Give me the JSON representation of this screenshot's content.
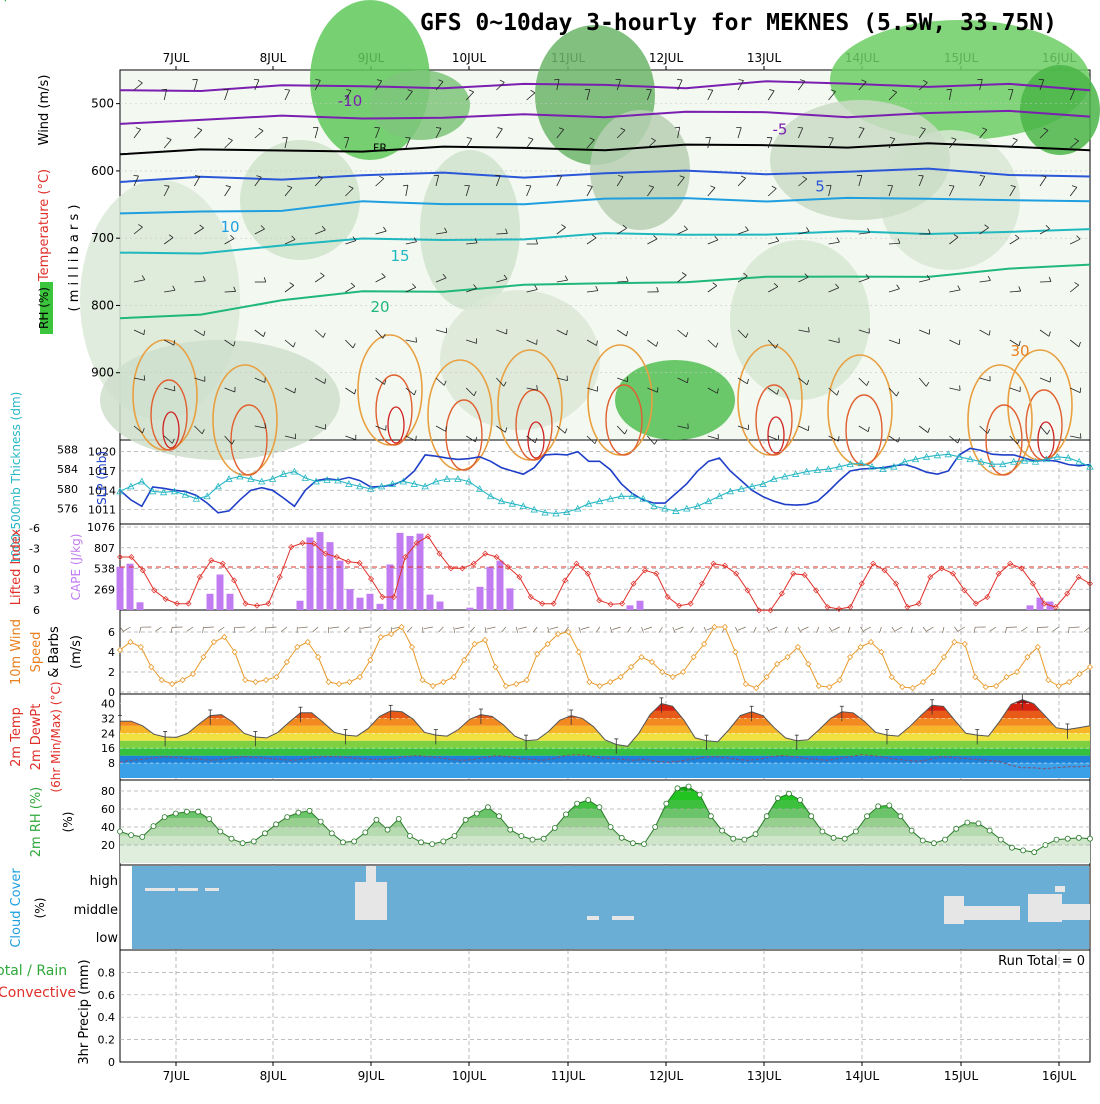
{
  "title": "GFS 0~10day 3-hourly for MEKNES (5.5W, 33.75N)",
  "date_labels": [
    "7JUL",
    "8JUL",
    "9JUL",
    "10JUL",
    "11JUL",
    "12JUL",
    "13JUL",
    "14JUL",
    "15JUL",
    "16JUL"
  ],
  "colors": {
    "grid": "#aaaaaa",
    "slp": "#1f3fc8",
    "thickness": "#27b7c4",
    "cape": "#c07cf0",
    "li": "#e0302a",
    "wind": "#e89a2a",
    "rh": "#2fa83a",
    "cloud": "#6aaed6",
    "cloud_fill": "#e6e6e6"
  },
  "chart_data": [
    {
      "type": "heatmap",
      "panel": "upper_air",
      "ylabel_parts": [
        "RH (%)",
        "Temperature (°C)",
        "Wind (m/s)"
      ],
      "ylabel_center": "( m i l l i b a r s )",
      "y_ticks": [
        500,
        600,
        700,
        800,
        900
      ],
      "ylim": [
        1000,
        450
      ],
      "isotherms": [
        {
          "label": "-10",
          "color": "#7a1fb0",
          "y": [
            480,
            478,
            476,
            474,
            474,
            474,
            472,
            474,
            470,
            470,
            472,
            474,
            480
          ]
        },
        {
          "label": "-5",
          "color": "#7a1fb0",
          "y": [
            527,
            524,
            521,
            519,
            521,
            519,
            517,
            512,
            516,
            517,
            514,
            514,
            516
          ]
        },
        {
          "label": "FR",
          "color": "#000000",
          "y": [
            572,
            571,
            570,
            568,
            567,
            566,
            566,
            564,
            562,
            562,
            562,
            564,
            566
          ]
        },
        {
          "label": "5",
          "color": "#2a57d8",
          "y": [
            616,
            612,
            610,
            606,
            606,
            607,
            603,
            603,
            602,
            601,
            600,
            603,
            608
          ]
        },
        {
          "label": "10",
          "color": "#1f9fe0",
          "y": [
            666,
            661,
            656,
            648,
            650,
            646,
            644,
            641,
            642,
            643,
            642,
            640,
            648
          ]
        },
        {
          "label": "15",
          "color": "#1fb8bf",
          "y": [
            725,
            720,
            710,
            704,
            700,
            701,
            696,
            692,
            694,
            693,
            691,
            690,
            690
          ]
        },
        {
          "label": "20",
          "color": "#1fb87a",
          "y": [
            820,
            810,
            795,
            780,
            776,
            772,
            768,
            762,
            760,
            758,
            754,
            748,
            740
          ]
        },
        {
          "label": "30",
          "color": "#e8801f",
          "y": [
            null
          ]
        }
      ],
      "rh_levels": [
        30,
        50
      ]
    },
    {
      "type": "line",
      "panel": "slp_thickness",
      "ylabel_left": "1000-500mb Thickness (dm)",
      "ylabel_right": "SLP (mb)",
      "left_ticks": [
        576,
        580,
        584,
        588
      ],
      "right_ticks": [
        1011,
        1014,
        1017,
        1020
      ],
      "series": [
        {
          "name": "SLP (mb)",
          "values": [
            1014.0,
            1012.5,
            1011.5,
            1014.5,
            1014.3,
            1014.0,
            1013.8,
            1013.2,
            1012.0,
            1010.5,
            1010.8,
            1012.5,
            1014.0,
            1014.4,
            1014.0,
            1012.8,
            1011.5,
            1014.0,
            1015.5,
            1015.8,
            1015.6,
            1016.0,
            1015.5,
            1014.5,
            1014.6,
            1014.8,
            1015.5,
            1017.0,
            1019.5,
            1019.3,
            1019.0,
            1018.8,
            1018.9,
            1019.2,
            1018.5,
            1017.5,
            1017.0,
            1016.5,
            1017.5,
            1019.5,
            1019.6,
            1019.5,
            1020.0,
            1018.5,
            1018.5,
            1017.2,
            1015.0,
            1013.5,
            1012.5,
            1012.0,
            1012.0,
            1013.5,
            1015.0,
            1017.0,
            1018.5,
            1019.0,
            1017.0,
            1015.5,
            1014.0,
            1013.0,
            1012.3,
            1011.8,
            1011.7,
            1011.8,
            1012.3,
            1013.8,
            1015.5,
            1017.0,
            1017.3,
            1017.4,
            1017.5,
            1017.8,
            1018.0,
            1017.5,
            1016.8,
            1016.5,
            1017.0,
            1019.5,
            1020.5,
            1020.2,
            1019.6,
            1019.5,
            1019.5,
            1019.0,
            1018.5,
            1018.7,
            1018.5,
            1018.0,
            1017.8,
            1018.0
          ]
        },
        {
          "name": "1000-500mb Thickness (dm)",
          "values": [
            579.5,
            580.5,
            581.5,
            579.5,
            579.3,
            579.5,
            578.8,
            578.0,
            578.5,
            580.5,
            582.0,
            582.5,
            582.0,
            581.5,
            582.0,
            583.0,
            583.5,
            582.2,
            581.5,
            581.8,
            581.7,
            581.0,
            580.5,
            580.0,
            580.5,
            581.0,
            581.5,
            581.0,
            580.5,
            581.5,
            582.0,
            582.0,
            581.5,
            580.0,
            578.5,
            577.5,
            577.0,
            576.5,
            575.8,
            575.2,
            575.0,
            575.3,
            576.0,
            577.0,
            577.5,
            578.0,
            578.5,
            578.5,
            578.0,
            576.5,
            576.0,
            575.5,
            576.0,
            576.5,
            577.5,
            578.5,
            579.5,
            580.0,
            580.5,
            581.0,
            582.0,
            582.5,
            583.0,
            583.5,
            583.8,
            584.0,
            584.5,
            585.0,
            585.2,
            584.5,
            584.0,
            584.5,
            585.5,
            586.0,
            586.5,
            586.8,
            587.0,
            586.5,
            586.0,
            585.5,
            585.0,
            585.0,
            585.5,
            585.7,
            585.5,
            586.0,
            586.5,
            586.3,
            585.5,
            584.5
          ]
        }
      ]
    },
    {
      "type": "bar",
      "panel": "cape_li",
      "ylabel_left": "Lifted Index",
      "ylabel_right": "CAPE (J/kg)",
      "li_ticks": [
        "6",
        "3",
        "0",
        "-3",
        "-6"
      ],
      "cape_ticks": [
        269,
        538,
        807,
        1076
      ],
      "cape_values": [
        560,
        600,
        100,
        0,
        0,
        0,
        0,
        0,
        0,
        210,
        460,
        210,
        0,
        0,
        0,
        0,
        0,
        0,
        120,
        940,
        1010,
        880,
        640,
        270,
        160,
        210,
        80,
        590,
        1000,
        960,
        990,
        200,
        110,
        0,
        0,
        30,
        300,
        560,
        640,
        280,
        0,
        0,
        0,
        0,
        0,
        0,
        0,
        0,
        0,
        0,
        0,
        60,
        120,
        0,
        0,
        0,
        0,
        0,
        0,
        0,
        0,
        0,
        0,
        0,
        0,
        0,
        0,
        0,
        0,
        0,
        0,
        0,
        0,
        0,
        0,
        0,
        0,
        0,
        0,
        0,
        0,
        0,
        0,
        0,
        0,
        0,
        0,
        0,
        0,
        0,
        0,
        60,
        160,
        110,
        0,
        0,
        0,
        0
      ],
      "li_values": [
        -1.5,
        -1.5,
        0.5,
        3.5,
        4.8,
        5.5,
        5.5,
        1.5,
        -1.0,
        -0.5,
        2.0,
        5.5,
        5.8,
        5.5,
        1.5,
        -3.0,
        -3.6,
        -3.5,
        -2.0,
        -1.5,
        -0.8,
        -0.6,
        1.8,
        4.5,
        4.5,
        -1.5,
        -3.6,
        -4.6,
        -2.0,
        0.2,
        0.2,
        -0.5,
        -2.0,
        -1.5,
        0.0,
        1.5,
        4.5,
        5.5,
        5.5,
        2.0,
        -0.5,
        1.0,
        5.0,
        5.6,
        5.5,
        2.5,
        0.5,
        1.0,
        4.5,
        5.8,
        5.5,
        2.5,
        -0.5,
        -0.2,
        1.0,
        3.5,
        6.5,
        6.5,
        4.0,
        1.0,
        1.2,
        3.5,
        6.0,
        6.3,
        6.0,
        2.5,
        -0.5,
        0.5,
        2.5,
        6.0,
        5.5,
        1.5,
        0.2,
        1.0,
        3.5,
        5.5,
        4.5,
        1.0,
        -0.5,
        0.2,
        2.5,
        5.5,
        6.0,
        4.0,
        1.5,
        2.5
      ]
    },
    {
      "type": "line",
      "panel": "wind10m",
      "ylabel": "10m Wind Speed & Barbs (m/s)",
      "ylabel_parts": [
        "10m Wind",
        "Speed",
        "& Barbs",
        "(m/s)"
      ],
      "ticks": [
        0,
        2,
        4,
        6
      ],
      "ylim": [
        0,
        8
      ],
      "values": [
        4.2,
        5.0,
        4.5,
        2.5,
        1.2,
        0.8,
        1.2,
        1.8,
        3.5,
        5.0,
        5.5,
        4.0,
        1.2,
        1.0,
        1.2,
        1.5,
        3.0,
        4.5,
        5.0,
        3.5,
        1.0,
        0.8,
        1.0,
        1.5,
        3.2,
        5.5,
        5.8,
        6.5,
        4.5,
        1.2,
        0.6,
        1.0,
        1.5,
        3.2,
        4.8,
        5.2,
        2.5,
        0.6,
        0.8,
        1.2,
        3.8,
        4.8,
        5.8,
        6.0,
        4.0,
        1.0,
        0.6,
        1.0,
        1.5,
        2.5,
        3.5,
        3.0,
        2.0,
        1.5,
        2.0,
        3.5,
        4.8,
        6.5,
        6.5,
        4.0,
        0.8,
        0.4,
        1.5,
        2.8,
        3.5,
        4.5,
        2.8,
        0.6,
        0.5,
        1.2,
        3.5,
        4.5,
        5.0,
        4.0,
        1.5,
        0.5,
        0.4,
        1.0,
        2.0,
        3.5,
        5.0,
        4.8,
        1.5,
        0.5,
        0.6,
        1.5,
        2.0,
        3.5,
        4.5,
        1.2,
        0.6,
        1.0,
        1.8,
        2.5
      ]
    },
    {
      "type": "area",
      "panel": "temp2m",
      "ylabel_parts": [
        "2m Temp",
        "2m DewPt",
        "(6hr Min/Max) (°C)"
      ],
      "ticks": [
        8,
        16,
        24,
        32,
        40
      ],
      "ylim": [
        0,
        44
      ],
      "temp": [
        30.5,
        30.5,
        28.0,
        23.5,
        22.0,
        21.8,
        24.0,
        29.0,
        33.5,
        34.0,
        30.0,
        24.0,
        22.0,
        21.5,
        24.5,
        30.0,
        35.0,
        35.0,
        30.0,
        24.5,
        23.0,
        22.5,
        26.5,
        33.0,
        36.0,
        35.5,
        31.5,
        24.5,
        23.0,
        22.5,
        26.0,
        31.5,
        34.0,
        33.0,
        28.5,
        22.5,
        20.0,
        20.5,
        25.0,
        31.0,
        33.5,
        32.0,
        27.5,
        20.5,
        18.0,
        17.0,
        24.0,
        34.0,
        40.0,
        38.5,
        31.0,
        21.5,
        20.0,
        19.5,
        26.0,
        33.5,
        35.5,
        33.5,
        27.0,
        21.5,
        20.0,
        20.5,
        26.0,
        32.0,
        35.5,
        35.0,
        30.5,
        24.5,
        23.0,
        22.5,
        27.5,
        33.5,
        39.0,
        38.5,
        31.0,
        24.0,
        23.0,
        22.5,
        30.5,
        39.5,
        42.0,
        40.0,
        33.5,
        27.0,
        26.0,
        27.0,
        28.0
      ],
      "dew": [
        8.5,
        9.5,
        10.0,
        10.8,
        11.5,
        11.0,
        10.5,
        10.0,
        9.5,
        10.0,
        11.0,
        11.5,
        11.0,
        10.5,
        10.0,
        9.5,
        10.0,
        11.0,
        11.5,
        11.5,
        11.0,
        10.5,
        10.0,
        10.0,
        10.5,
        11.5,
        12.0,
        11.5,
        11.0,
        10.0,
        9.5,
        10.0,
        11.0,
        12.0,
        11.5,
        10.5,
        10.0,
        9.5,
        10.5,
        12.0,
        12.5,
        12.0,
        11.0,
        10.5,
        10.0,
        9.5,
        10.0,
        9.0,
        8.5,
        9.0,
        10.0,
        11.0,
        11.5,
        11.0,
        10.0,
        9.5,
        10.0,
        11.5,
        12.0,
        11.5,
        10.5,
        10.0,
        9.5,
        10.5,
        11.5,
        12.5,
        12.0,
        11.0,
        10.0,
        9.5,
        9.0,
        10.0,
        11.5,
        11.0,
        10.5,
        10.0,
        9.5,
        9.0,
        7.0,
        5.5,
        5.5,
        5.0,
        5.5,
        6.0,
        6.0,
        6.5
      ]
    },
    {
      "type": "area",
      "panel": "rh2m",
      "ylabel": "2m RH (%)",
      "ticks": [
        20,
        40,
        60,
        80
      ],
      "ylim": [
        0,
        90
      ],
      "values": [
        35,
        31,
        29,
        41,
        51,
        55,
        57,
        57,
        49,
        35,
        27,
        22,
        24,
        33,
        43,
        51,
        56,
        58,
        46,
        33,
        23,
        24,
        34,
        48,
        37,
        49,
        30,
        23,
        21,
        24,
        30,
        48,
        55,
        62,
        52,
        37,
        30,
        26,
        27,
        39,
        54,
        66,
        70,
        62,
        40,
        28,
        22,
        21,
        40,
        66,
        83,
        85,
        76,
        52,
        36,
        27,
        26,
        32,
        52,
        72,
        77,
        70,
        52,
        35,
        28,
        27,
        35,
        52,
        63,
        64,
        52,
        36,
        25,
        22,
        26,
        38,
        45,
        44,
        36,
        26,
        17,
        14,
        12,
        20,
        26,
        27,
        28,
        27
      ]
    },
    {
      "type": "heatmap",
      "panel": "cloud",
      "ylabel": "Cloud Cover (%)",
      "levels": [
        "high",
        "middle",
        "low"
      ]
    },
    {
      "type": "bar",
      "panel": "precip",
      "ylabel_parts": [
        "Total / Rain",
        "Convective",
        "3hr Precip (mm)"
      ],
      "ticks": [
        0,
        0.2,
        0.4,
        0.6,
        0.8
      ],
      "ylim": [
        0,
        1
      ],
      "annotation": "Run Total = 0",
      "values": []
    }
  ]
}
